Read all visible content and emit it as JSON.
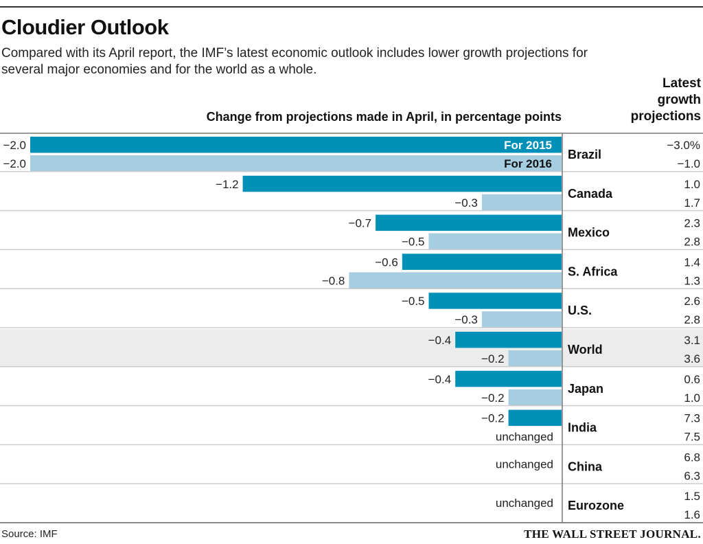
{
  "header": {
    "title": "Cloudier Outlook",
    "subtitle": "Compared with its April report, the IMF’s latest economic outlook includes lower growth projections for several major economies and for the world as a whole."
  },
  "footer": {
    "source": "Source: IMF",
    "brand": "THE WALL STREET JOURNAL."
  },
  "colors": {
    "series_2015": "#0090b8",
    "series_2016": "#a6cde0",
    "highlight_row": "#ececec",
    "gridline": "#cccccc",
    "axis": "#777777"
  },
  "chart_data": {
    "type": "bar",
    "orientation": "horizontal",
    "title": "Cloudier Outlook",
    "xlabel": "Change from projections made in April, in percentage points",
    "right_column_title": "Latest growth projections",
    "xlim": [
      -2.0,
      0
    ],
    "grid": false,
    "legend": [
      {
        "name": "For 2015",
        "placement": "inside-top-bar"
      },
      {
        "name": "For 2016",
        "placement": "inside-top-bar"
      }
    ],
    "categories": [
      "Brazil",
      "Canada",
      "Mexico",
      "S. Africa",
      "U.S.",
      "World",
      "Japan",
      "India",
      "China",
      "Eurozone"
    ],
    "highlighted_category": "World",
    "series": [
      {
        "name": "For 2015",
        "values": [
          -2.0,
          -1.2,
          -0.7,
          -0.6,
          -0.5,
          -0.4,
          -0.4,
          -0.2,
          0,
          0
        ],
        "labels": [
          "−2.0",
          "−1.2",
          "−0.7",
          "−0.6",
          "−0.5",
          "−0.4",
          "−0.4",
          "−0.2",
          "",
          ""
        ]
      },
      {
        "name": "For 2016",
        "values": [
          -2.0,
          -0.3,
          -0.5,
          -0.8,
          -0.3,
          -0.2,
          -0.2,
          0,
          0,
          0
        ],
        "labels": [
          "−2.0",
          "−0.3",
          "−0.5",
          "−0.8",
          "−0.3",
          "−0.2",
          "−0.2",
          "unchanged",
          "",
          ""
        ]
      }
    ],
    "row_notes": [
      "",
      "",
      "",
      "",
      "",
      "",
      "",
      "",
      "unchanged",
      "unchanged"
    ],
    "latest_growth_2015": [
      "−3.0%",
      "1.0",
      "2.3",
      "1.4",
      "2.6",
      "3.1",
      "0.6",
      "7.3",
      "6.8",
      "1.5"
    ],
    "latest_growth_2016": [
      "−1.0",
      "1.7",
      "2.8",
      "1.3",
      "2.8",
      "3.6",
      "1.0",
      "7.5",
      "6.3",
      "1.6"
    ]
  }
}
